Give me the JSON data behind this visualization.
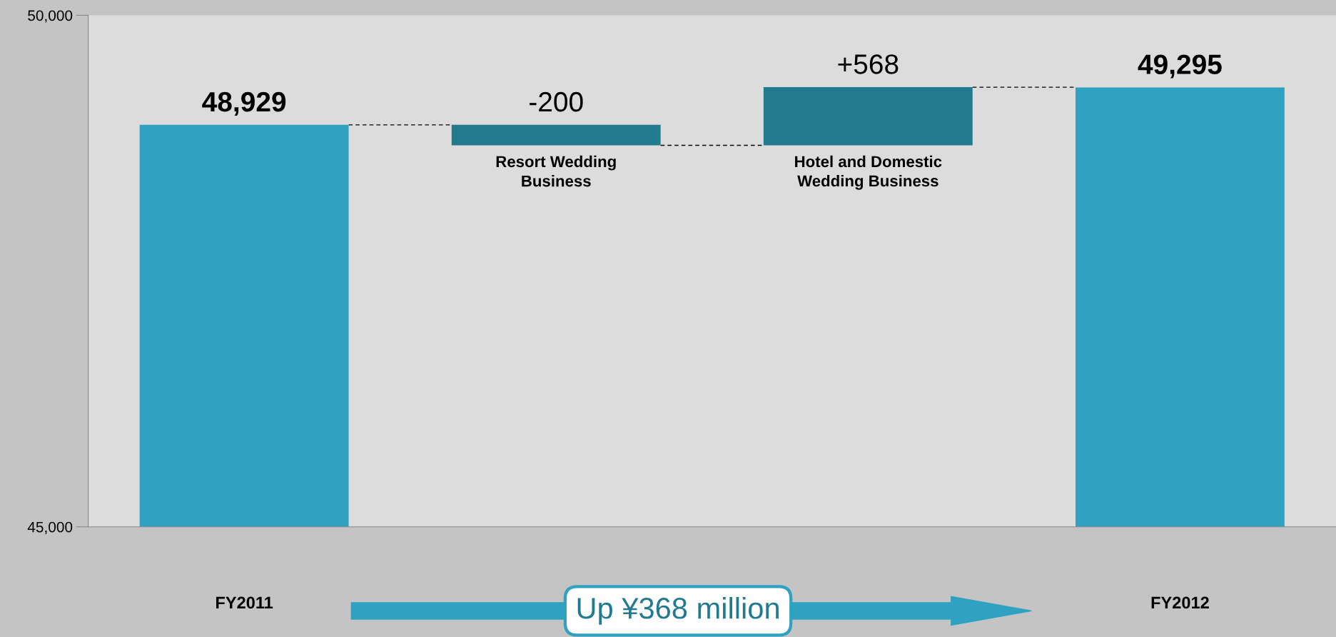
{
  "chart_data": {
    "type": "bar",
    "categories": [
      "FY2011",
      "Resort Wedding\nBusiness",
      "Hotel and Domestic\nWedding Business",
      "FY2012"
    ],
    "values": [
      48929,
      -200,
      568,
      49295
    ],
    "base": [
      null,
      48929,
      48729,
      null
    ],
    "colors": [
      "#2ea2c0",
      "#217a8e",
      "#217a8e",
      "#2ea2c0"
    ],
    "value_labels": [
      "48,929",
      "-200",
      "+568",
      "49,295"
    ],
    "ylim": [
      45000,
      50000
    ],
    "yticks": [
      {
        "value": 45000,
        "label": "45,000"
      },
      {
        "value": 50000,
        "label": "50,000"
      }
    ],
    "grid": false,
    "legend": false,
    "ref_lines": [
      {
        "axis": "y",
        "value": 48929,
        "color": "#000000",
        "line_style": "dashed"
      },
      {
        "axis": "y",
        "value": 48729,
        "color": "#000000",
        "line_style": "dashed"
      },
      {
        "axis": "y",
        "value": 49297,
        "color": "#000000",
        "line_style": "dashed"
      }
    ],
    "annotations": [
      "Up ¥368 million"
    ]
  }
}
